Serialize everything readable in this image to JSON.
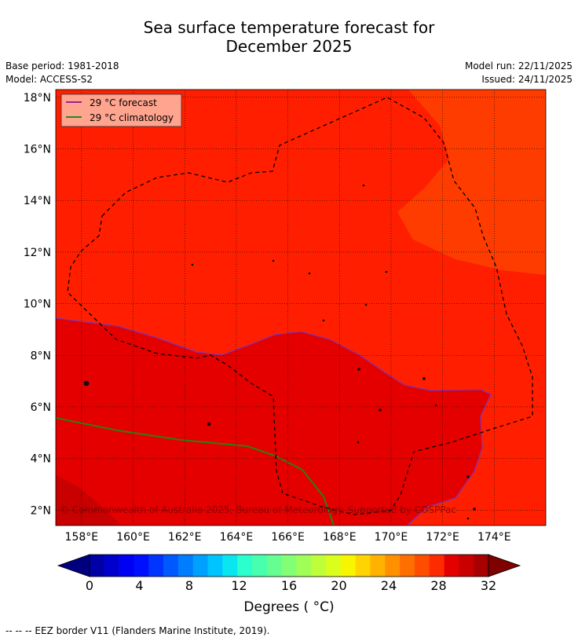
{
  "header": {
    "title_line1": "Sea surface temperature forecast for",
    "title_line2": "December 2025",
    "base_period": "Base period: 1981-2018",
    "model": "Model: ACCESS-S2",
    "model_run": "Model run: 22/11/2025",
    "issued": "Issued: 24/11/2025"
  },
  "map": {
    "lon_range": [
      157,
      176
    ],
    "lat_range": [
      1.4,
      18.3
    ],
    "lon_ticks": [
      "158°E",
      "160°E",
      "162°E",
      "164°E",
      "166°E",
      "168°E",
      "170°E",
      "172°E",
      "174°E"
    ],
    "lat_ticks": [
      "18°N",
      "16°N",
      "14°N",
      "12°N",
      "10°N",
      "8°N",
      "6°N",
      "4°N",
      "2°N"
    ],
    "copyright": "© Commonwealth of Australia 2025, Bureau of Meteorology. Supported by COSPPac",
    "legend": [
      {
        "label": "29 °C  forecast",
        "color": "#a0208c"
      },
      {
        "label": "29 °C  climatology",
        "color": "#228b22"
      }
    ],
    "colors": {
      "sst_28_29": "#ff1f00",
      "sst_29_30": "#e50000",
      "sst_30_31": "#c80000",
      "sst_27_28": "#ff3c00"
    }
  },
  "colorbar": {
    "ticks": [
      "0",
      "4",
      "8",
      "12",
      "16",
      "20",
      "24",
      "28",
      "32"
    ],
    "units_label": "Degrees ( °C)",
    "colors": [
      "#00007f",
      "#0000a6",
      "#0000cc",
      "#0000f2",
      "#0010ff",
      "#0034ff",
      "#0058ff",
      "#007cff",
      "#00a0ff",
      "#00c4ff",
      "#0ae6f0",
      "#2affcd",
      "#47ffaf",
      "#65ff91",
      "#82ff74",
      "#a0ff57",
      "#beff39",
      "#dbff1c",
      "#f8f500",
      "#ffd400",
      "#ffb200",
      "#ff9000",
      "#ff6e00",
      "#ff4d00",
      "#ff2b00",
      "#e50000",
      "#c80000",
      "#a80000",
      "#7f0000"
    ]
  },
  "footnote": "--  --  -- EEZ border V11 (Flanders Marine Institute, 2019)."
}
